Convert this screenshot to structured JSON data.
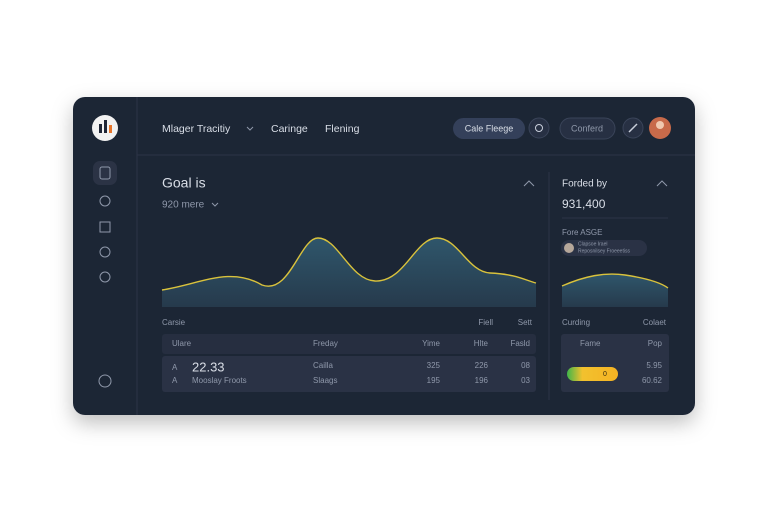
{
  "header": {
    "nav": [
      "Mlager Tracitiy",
      "Caringe",
      "Flening"
    ],
    "button": "Cale Fleege",
    "secondary": "Conferd"
  },
  "main": {
    "title": "Goal is",
    "subtitle": "920 mere",
    "table_caption": [
      "Carsie",
      "Fiell",
      "Sett"
    ],
    "table": {
      "columns": [
        "Ulare",
        "Freday",
        "Yime",
        "Hlte",
        "Fasld"
      ],
      "rows": [
        [
          "A",
          "22.33",
          "Cailla",
          "325",
          "226",
          "08"
        ],
        [
          "A",
          "Mooslay Froots",
          "Slaags",
          "195",
          "196",
          "03"
        ]
      ]
    }
  },
  "side": {
    "title": "Forded by",
    "value": "931,400",
    "label": "Fore ASGE",
    "note": [
      "Clapsoe Irael",
      "Reposnilsey Froeeetiss"
    ],
    "table_caption": [
      "Curding",
      "Colaet"
    ],
    "table": {
      "columns": [
        "Fame",
        "Pop"
      ],
      "rows": [
        [
          "5.95"
        ],
        [
          "60.62"
        ]
      ]
    },
    "pill": "0"
  }
}
